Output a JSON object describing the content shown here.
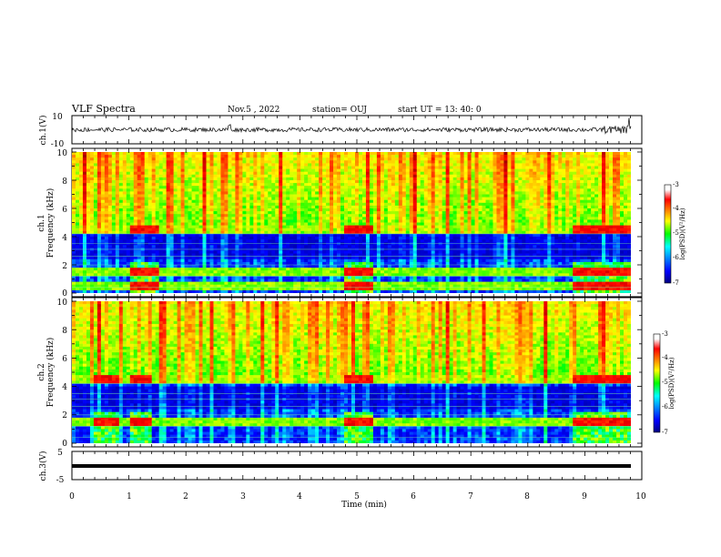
{
  "header": {
    "title": "VLF Spectra",
    "date": "Nov.5 , 2022",
    "station": "station= OUJ",
    "start": "start UT = 13: 40: 0"
  },
  "chart_data": [
    {
      "type": "line",
      "name": "ch1-waveform",
      "ylabel": "ch.1(V)",
      "ylim": [
        -10,
        10
      ],
      "yticks": [
        "10",
        "-10"
      ],
      "baseline_v": 0,
      "noise_v": 1.5,
      "spikes_min": [
        2.75,
        9.75
      ]
    },
    {
      "type": "heatmap",
      "name": "ch1-spectrogram",
      "ylabel_top": "ch.1",
      "ylabel": "Frequency (kHz)",
      "ylim": [
        0,
        10
      ],
      "yticks": [
        "0",
        "2",
        "4",
        "6",
        "8",
        "10"
      ],
      "colorbar": {
        "label": "log(PSD)(V²/Hz)",
        "ticks": [
          "-3",
          "-4",
          "-5",
          "-6",
          "-7"
        ],
        "range": [
          -7,
          -3
        ]
      },
      "bright_bands_khz": [
        0.5,
        1.5,
        4.5
      ],
      "quiet_band_khz": [
        2.5,
        4.2
      ],
      "enhanced_intervals_min": [
        [
          1.0,
          1.5
        ],
        [
          4.8,
          5.3
        ],
        [
          8.8,
          9.8
        ]
      ]
    },
    {
      "type": "heatmap",
      "name": "ch2-spectrogram",
      "ylabel_top": "ch.2",
      "ylabel": "Frequency (kHz)",
      "ylim": [
        0,
        10
      ],
      "yticks": [
        "0",
        "2",
        "4",
        "6",
        "8",
        "10"
      ],
      "colorbar": {
        "label": "log(PSD)(V²/Hz)",
        "ticks": [
          "-3",
          "-4",
          "-5",
          "-6",
          "-7"
        ],
        "range": [
          -7,
          -3
        ]
      },
      "bright_bands_khz": [
        1.5,
        4.5
      ],
      "quiet_band_khz": [
        2.5,
        4.0
      ],
      "enhanced_intervals_min": [
        [
          0.4,
          0.8
        ],
        [
          1.0,
          1.4
        ],
        [
          4.8,
          5.3
        ],
        [
          8.8,
          9.8
        ]
      ]
    },
    {
      "type": "line",
      "name": "ch3-waveform",
      "ylabel": "ch.3(V)",
      "ylim": [
        -5,
        5
      ],
      "yticks": [
        "5",
        "-5"
      ],
      "baseline_v": -1.6,
      "noise_v": 0.1
    }
  ],
  "xaxis": {
    "label": "Time (min)",
    "ticks": [
      "0",
      "1",
      "2",
      "3",
      "4",
      "5",
      "6",
      "7",
      "8",
      "9",
      "10"
    ],
    "xlim": [
      0,
      10
    ]
  },
  "colors": {
    "jet": [
      "#000080",
      "#0000ff",
      "#00ffff",
      "#00ff00",
      "#ffff00",
      "#ff8000",
      "#ff0000",
      "#800000"
    ]
  }
}
